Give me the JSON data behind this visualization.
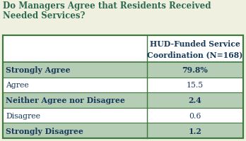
{
  "title_line1": "Do Managers Agree that Residents Received",
  "title_line2": "Needed Services?",
  "col_header": "HUD-Funded Service\nCoordination (N=168)",
  "rows": [
    {
      "label": "Strongly Agree",
      "value": "79.8%",
      "bold": true,
      "shaded": true
    },
    {
      "label": "Agree",
      "value": "15.5",
      "bold": false,
      "shaded": false
    },
    {
      "label": "Neither Agree nor Disagree",
      "value": "2.4",
      "bold": true,
      "shaded": true
    },
    {
      "label": "Disagree",
      "value": "0.6",
      "bold": false,
      "shaded": false
    },
    {
      "label": "Strongly Disagree",
      "value": "1.2",
      "bold": true,
      "shaded": true
    }
  ],
  "title_color": "#2d6a4f",
  "header_text_color": "#1a3a5c",
  "row_text_color": "#1a3a5c",
  "shaded_bg": "#b5ccb5",
  "unshaded_bg": "#ffffff",
  "header_bg": "#ffffff",
  "border_color": "#3a7a3a",
  "outer_bg": "#f0f0e0",
  "title_fontsize": 8.5,
  "header_fontsize": 7.8,
  "row_fontsize": 7.8,
  "fig_width": 3.48,
  "fig_height": 2.01,
  "dpi": 100
}
